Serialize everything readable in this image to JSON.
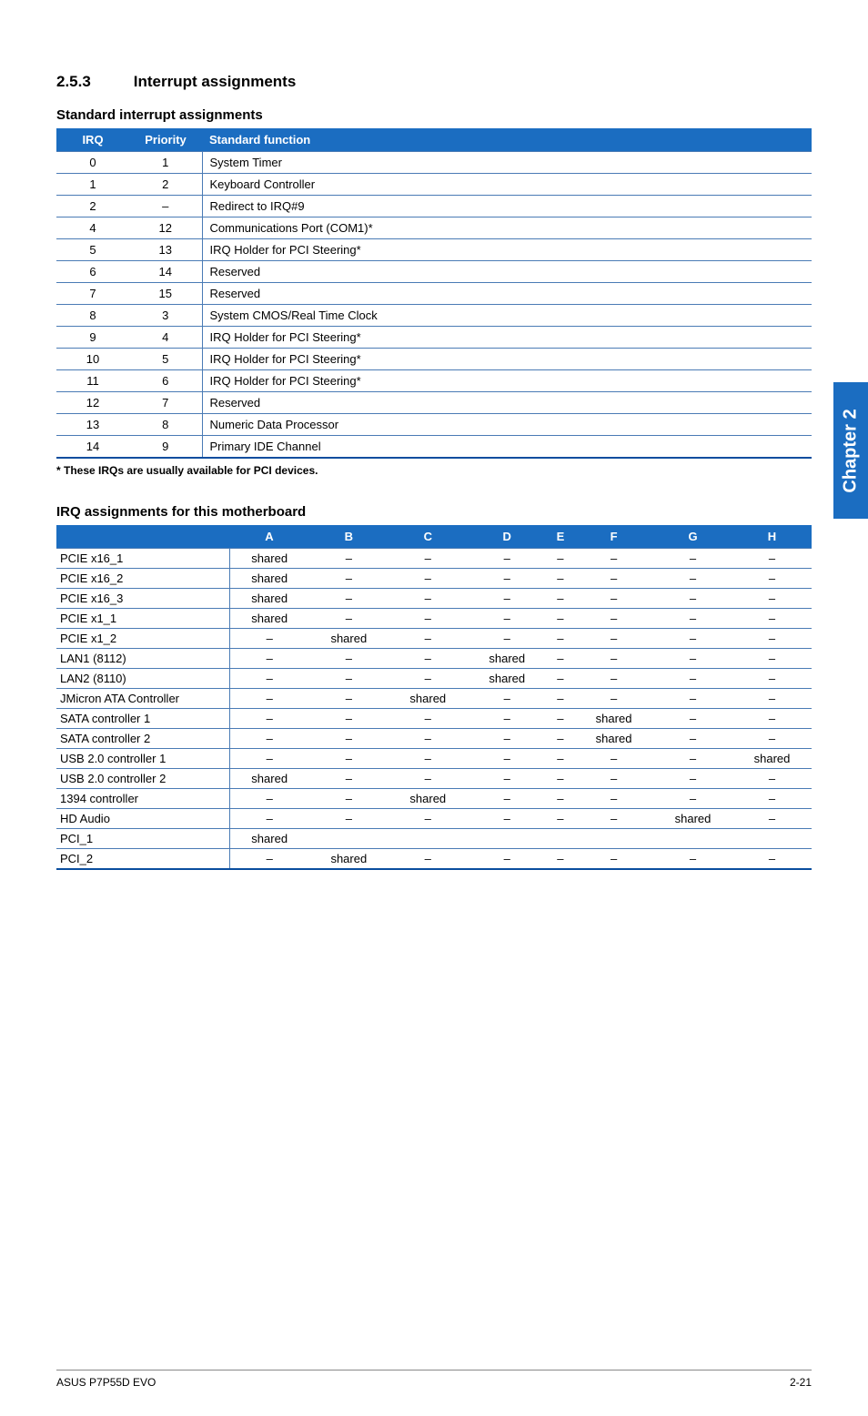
{
  "colors": {
    "header_bg": "#1b6dc1",
    "row_border": "#4a7bb5",
    "bottom_border": "#0a4d9e",
    "sidetab_bg": "#1b6dc1",
    "text": "#000000",
    "header_text": "#ffffff"
  },
  "section": {
    "number": "2.5.3",
    "title": "Interrupt assignments"
  },
  "table1": {
    "heading": "Standard interrupt assignments",
    "columns": [
      "IRQ",
      "Priority",
      "Standard function"
    ],
    "rows": [
      [
        "0",
        "1",
        "System Timer"
      ],
      [
        "1",
        "2",
        "Keyboard Controller"
      ],
      [
        "2",
        "–",
        "Redirect to IRQ#9"
      ],
      [
        "4",
        "12",
        "Communications Port (COM1)*"
      ],
      [
        "5",
        "13",
        "IRQ Holder for PCI Steering*"
      ],
      [
        "6",
        "14",
        "Reserved"
      ],
      [
        "7",
        "15",
        "Reserved"
      ],
      [
        "8",
        "3",
        "System CMOS/Real Time Clock"
      ],
      [
        "9",
        "4",
        "IRQ Holder for PCI Steering*"
      ],
      [
        "10",
        "5",
        "IRQ Holder for PCI Steering*"
      ],
      [
        "11",
        "6",
        "IRQ Holder for PCI Steering*"
      ],
      [
        "12",
        "7",
        "Reserved"
      ],
      [
        "13",
        "8",
        "Numeric Data Processor"
      ],
      [
        "14",
        "9",
        "Primary IDE Channel"
      ]
    ],
    "note": "* These IRQs are usually available for PCI devices."
  },
  "table2": {
    "heading": "IRQ assignments for this motherboard",
    "columns": [
      "",
      "A",
      "B",
      "C",
      "D",
      "E",
      "F",
      "G",
      "H"
    ],
    "rows": [
      [
        "PCIE x16_1",
        "shared",
        "–",
        "–",
        "–",
        "–",
        "–",
        "–",
        "–"
      ],
      [
        "PCIE x16_2",
        "shared",
        "–",
        "–",
        "–",
        "–",
        "–",
        "–",
        "–"
      ],
      [
        "PCIE x16_3",
        "shared",
        "–",
        "–",
        "–",
        "–",
        "–",
        "–",
        "–"
      ],
      [
        "PCIE x1_1",
        "shared",
        "–",
        "–",
        "–",
        "–",
        "–",
        "–",
        "–"
      ],
      [
        "PCIE x1_2",
        "–",
        "shared",
        "–",
        "–",
        "–",
        "–",
        "–",
        "–"
      ],
      [
        "LAN1 (8112)",
        "–",
        "–",
        "–",
        "shared",
        "–",
        "–",
        "–",
        "–"
      ],
      [
        "LAN2 (8110)",
        "–",
        "–",
        "–",
        "shared",
        "–",
        "–",
        "–",
        "–"
      ],
      [
        "JMicron ATA Controller",
        "–",
        "–",
        "shared",
        "–",
        "–",
        "–",
        "–",
        "–"
      ],
      [
        "SATA controller 1",
        "–",
        "–",
        "–",
        "–",
        "–",
        "shared",
        "–",
        "–"
      ],
      [
        "SATA controller 2",
        "–",
        "–",
        "–",
        "–",
        "–",
        "shared",
        "–",
        "–"
      ],
      [
        "USB 2.0 controller 1",
        "–",
        "–",
        "–",
        "–",
        "–",
        "–",
        "–",
        "shared"
      ],
      [
        "USB 2.0 controller 2",
        "shared",
        "–",
        "–",
        "–",
        "–",
        "–",
        "–",
        "–"
      ],
      [
        "1394 controller",
        "–",
        "–",
        "shared",
        "–",
        "–",
        "–",
        "–",
        "–"
      ],
      [
        "HD Audio",
        "–",
        "–",
        "–",
        "–",
        "–",
        "–",
        "shared",
        "–"
      ],
      [
        "PCI_1",
        "shared",
        "",
        "",
        "",
        "",
        "",
        "",
        ""
      ],
      [
        "PCI_2",
        "–",
        "shared",
        "–",
        "–",
        "–",
        "–",
        "–",
        "–"
      ]
    ]
  },
  "sidetab": {
    "label": "Chapter 2"
  },
  "footer": {
    "left": "ASUS P7P55D EVO",
    "right": "2-21"
  }
}
